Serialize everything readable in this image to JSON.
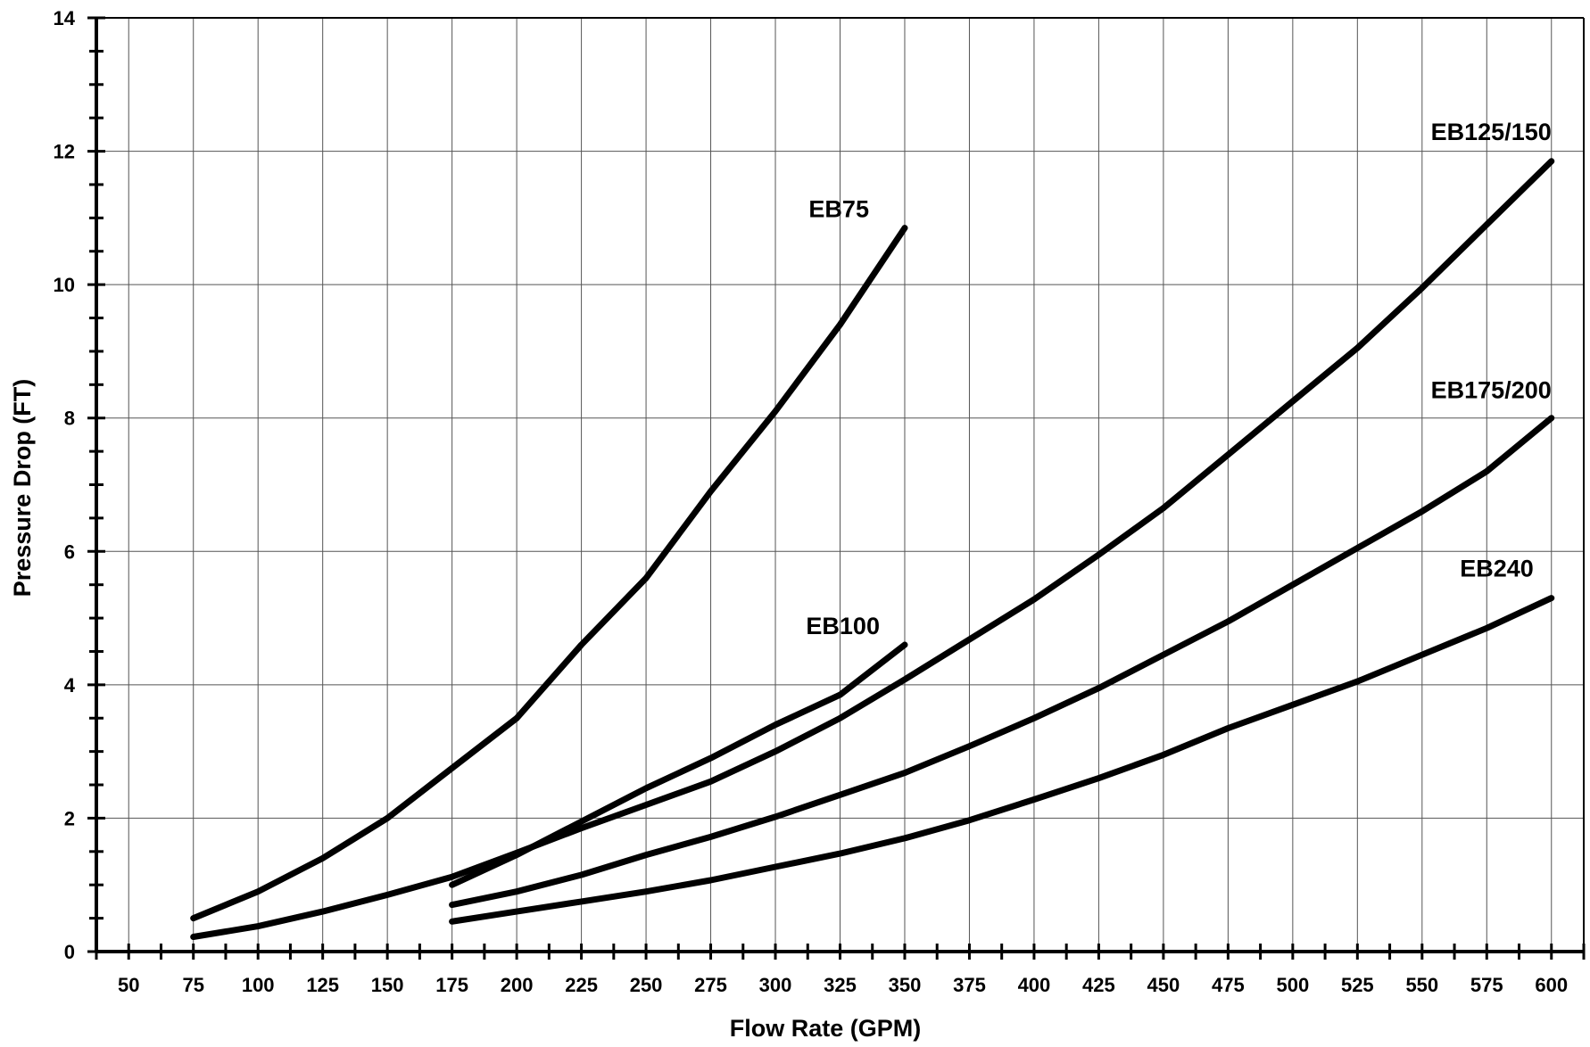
{
  "chart_data": {
    "type": "line",
    "title": "",
    "xlabel": "Flow Rate (GPM)",
    "ylabel": "Pressure Drop (FT)",
    "xlim": [
      37.5,
      612.5
    ],
    "ylim": [
      0,
      14
    ],
    "x_ticks": [
      50,
      75,
      100,
      125,
      150,
      175,
      200,
      225,
      250,
      275,
      300,
      325,
      350,
      375,
      400,
      425,
      450,
      475,
      500,
      525,
      550,
      575,
      600
    ],
    "y_ticks": [
      0,
      2,
      4,
      6,
      8,
      10,
      12,
      14
    ],
    "grid": true,
    "legend": "none",
    "series": [
      {
        "name": "EB75",
        "x": [
          75,
          100,
          125,
          150,
          175,
          200,
          225,
          250,
          275,
          300,
          325,
          350
        ],
        "y": [
          0.5,
          0.9,
          1.4,
          2.0,
          2.75,
          3.5,
          4.6,
          5.6,
          6.9,
          8.1,
          9.4,
          10.85
        ]
      },
      {
        "name": "EB100",
        "x": [
          175,
          200,
          225,
          250,
          275,
          300,
          325,
          350
        ],
        "y": [
          1.0,
          1.45,
          1.95,
          2.45,
          2.9,
          3.4,
          3.85,
          4.6
        ]
      },
      {
        "name": "EB125/150",
        "x": [
          75,
          100,
          125,
          150,
          175,
          200,
          225,
          250,
          275,
          300,
          325,
          350,
          375,
          400,
          425,
          450,
          475,
          500,
          525,
          550,
          575,
          600
        ],
        "y": [
          0.22,
          0.38,
          0.6,
          0.85,
          1.12,
          1.48,
          1.85,
          2.2,
          2.55,
          3.0,
          3.5,
          4.08,
          4.68,
          5.28,
          5.95,
          6.65,
          7.45,
          8.25,
          9.05,
          9.95,
          10.9,
          11.85
        ]
      },
      {
        "name": "EB175/200",
        "x": [
          175,
          200,
          225,
          250,
          275,
          300,
          325,
          350,
          375,
          400,
          425,
          450,
          475,
          500,
          525,
          550,
          575,
          600
        ],
        "y": [
          0.7,
          0.9,
          1.15,
          1.45,
          1.72,
          2.02,
          2.35,
          2.68,
          3.08,
          3.5,
          3.95,
          4.45,
          4.95,
          5.5,
          6.05,
          6.6,
          7.2,
          8.0
        ]
      },
      {
        "name": "EB240",
        "x": [
          175,
          200,
          225,
          250,
          275,
          300,
          325,
          350,
          375,
          400,
          425,
          450,
          475,
          500,
          525,
          550,
          575,
          600
        ],
        "y": [
          0.45,
          0.6,
          0.75,
          0.9,
          1.07,
          1.27,
          1.47,
          1.7,
          1.97,
          2.28,
          2.6,
          2.95,
          3.35,
          3.7,
          4.05,
          4.45,
          4.85,
          5.3
        ]
      }
    ],
    "annotations": [
      {
        "text": "EB75",
        "series": "EB75"
      },
      {
        "text": "EB100",
        "series": "EB100"
      },
      {
        "text": "EB125/150",
        "series": "EB125/150"
      },
      {
        "text": "EB175/200",
        "series": "EB175/200"
      },
      {
        "text": "EB240",
        "series": "EB240"
      }
    ]
  }
}
